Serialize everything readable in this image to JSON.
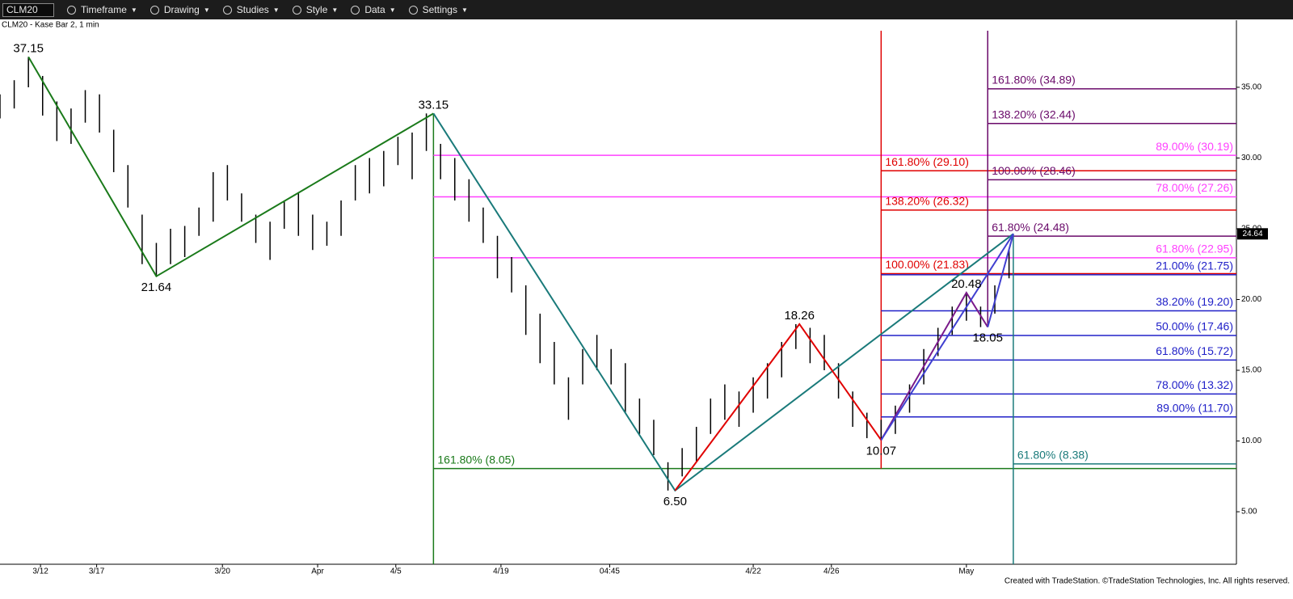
{
  "toolbar": {
    "symbol": "CLM20",
    "menus": [
      "Timeframe",
      "Drawing",
      "Studies",
      "Style",
      "Data",
      "Settings"
    ]
  },
  "footer": "Created with TradeStation. ©TradeStation Technologies, Inc. All rights reserved.",
  "chart_data": {
    "type": "ohlc",
    "title": "CLM20 - Kase Bar 2, 1 min",
    "xlim": [
      0,
      174
    ],
    "ylim": [
      1.29,
      39.74
    ],
    "yticks": [
      {
        "value": 5,
        "label": "5.00"
      },
      {
        "value": 10,
        "label": "10.00"
      },
      {
        "value": 15,
        "label": "15.00"
      },
      {
        "value": 20,
        "label": "20.00"
      },
      {
        "value": 25,
        "label": "25.00"
      },
      {
        "value": 30,
        "label": "30.00"
      },
      {
        "value": 35,
        "label": "35.00"
      }
    ],
    "xticks": [
      {
        "value": 5.7,
        "label": "3/12"
      },
      {
        "value": 13.6,
        "label": "3/17"
      },
      {
        "value": 31.3,
        "label": "3/20"
      },
      {
        "value": 44.7,
        "label": "Apr"
      },
      {
        "value": 55.7,
        "label": "4/5"
      },
      {
        "value": 70.5,
        "label": "4/19"
      },
      {
        "value": 85.8,
        "label": "04:45"
      },
      {
        "value": 106,
        "label": "4/22"
      },
      {
        "value": 117,
        "label": "4/26"
      },
      {
        "value": 136,
        "label": "May"
      }
    ],
    "bars": {
      "color": "#000000",
      "x": [
        0,
        2,
        4,
        6,
        8,
        10,
        12,
        14,
        16,
        18,
        20,
        22,
        24,
        26,
        28,
        30,
        32,
        34,
        36,
        38,
        40,
        42,
        44,
        46,
        48,
        50,
        52,
        54,
        56,
        58,
        60,
        62,
        64,
        66,
        68,
        70,
        72,
        74,
        76,
        78,
        80,
        82,
        84,
        86,
        88,
        90,
        92,
        94,
        96,
        98,
        100,
        102,
        104,
        106,
        108,
        110,
        112,
        114,
        116,
        118,
        120,
        122,
        124,
        126,
        128,
        130,
        132,
        134,
        136,
        138,
        140,
        142
      ],
      "high": [
        34.5,
        35.5,
        37.15,
        35.8,
        34.0,
        33.5,
        34.8,
        34.5,
        32.0,
        29.5,
        26.0,
        24.0,
        25.0,
        25.2,
        26.5,
        29.0,
        29.5,
        27.5,
        26.0,
        25.5,
        27.0,
        27.5,
        26.0,
        25.5,
        27.0,
        29.5,
        30.0,
        30.5,
        31.5,
        31.8,
        33.15,
        31.0,
        30.0,
        28.5,
        26.5,
        24.5,
        23.0,
        21.0,
        19.0,
        17.0,
        14.5,
        16.5,
        17.5,
        16.5,
        15.5,
        13.0,
        11.5,
        8.5,
        9.5,
        11.0,
        13.0,
        14.0,
        13.5,
        14.5,
        15.5,
        17.0,
        18.26,
        18.0,
        17.5,
        15.5,
        13.5,
        12.0,
        11.5,
        12.5,
        14.0,
        16.5,
        18.0,
        19.5,
        20.48,
        19.5,
        21.0,
        23.5
      ],
      "low": [
        32.8,
        33.5,
        35.0,
        33.0,
        31.2,
        31.0,
        32.5,
        31.8,
        29.0,
        26.5,
        22.5,
        21.64,
        22.5,
        23.0,
        24.5,
        25.5,
        27.0,
        25.5,
        24.0,
        22.8,
        25.0,
        24.5,
        23.5,
        23.8,
        24.5,
        27.0,
        27.5,
        28.0,
        29.5,
        28.5,
        30.5,
        28.5,
        27.0,
        25.5,
        24.0,
        21.5,
        20.5,
        17.5,
        15.5,
        14.0,
        11.5,
        14.0,
        15.0,
        14.0,
        12.0,
        10.5,
        9.0,
        6.5,
        7.5,
        8.5,
        10.5,
        11.5,
        11.0,
        12.0,
        13.0,
        14.5,
        16.5,
        15.5,
        15.0,
        13.0,
        11.0,
        10.2,
        10.07,
        10.5,
        12.0,
        14.0,
        16.0,
        17.5,
        18.5,
        18.05,
        19.0,
        21.5
      ]
    },
    "zigzags": [
      {
        "color": "#1a7a1a",
        "x": [
          4,
          22,
          61
        ],
        "values": [
          37.15,
          21.64,
          33.15
        ]
      },
      {
        "color": "#1a7a7a",
        "x": [
          61,
          95,
          142.6
        ],
        "values": [
          33.15,
          6.5,
          24.64
        ]
      },
      {
        "color": "#e00000",
        "x": [
          95,
          112.5,
          124
        ],
        "values": [
          6.5,
          18.26,
          10.07
        ]
      },
      {
        "color": "#7a1a8a",
        "x": [
          124,
          136,
          139
        ],
        "values": [
          10.07,
          20.48,
          18.05
        ]
      },
      {
        "color": "#4040d0",
        "x": [
          124,
          142.6
        ],
        "values": [
          10.07,
          24.64
        ]
      },
      {
        "color": "#4040d0",
        "x": [
          139,
          142.6
        ],
        "values": [
          18.05,
          24.64
        ]
      }
    ],
    "pivots": {
      "x": [
        4,
        22,
        61,
        95,
        112.5,
        124,
        136,
        139
      ],
      "values": [
        37.15,
        21.64,
        33.15,
        6.5,
        18.26,
        10.07,
        20.48,
        18.05
      ],
      "value_labels": [
        "37.15",
        "21.64",
        "33.15",
        "6.50",
        "18.26",
        "10.07",
        "20.48",
        "18.05"
      ]
    },
    "fib_groups": [
      {
        "color": "#1a7a1a",
        "x": 61,
        "vspan": [
          null,
          33.15
        ],
        "label_side": "left",
        "levels": [
          {
            "value": 8.05,
            "label": "161.80% (8.05)"
          }
        ]
      },
      {
        "color": "#ff40ff",
        "x": 61,
        "label_side": "right",
        "levels": [
          {
            "value": 30.19,
            "label": "89.00% (30.19)"
          },
          {
            "value": 27.26,
            "label": "78.00% (27.26)"
          },
          {
            "value": 22.95,
            "label": "61.80% (22.95)"
          }
        ]
      },
      {
        "color": "#e00000",
        "x": 124,
        "vspan": [
          8.05,
          null
        ],
        "label_side": "left",
        "levels": [
          {
            "value": 29.1,
            "label": "161.80% (29.10)"
          },
          {
            "value": 26.32,
            "label": "138.20% (26.32)"
          },
          {
            "value": 21.83,
            "label": "100.00% (21.83)"
          }
        ]
      },
      {
        "color": "#6a0a6a",
        "x": 139,
        "vspan": [
          18.05,
          null
        ],
        "label_side": "left",
        "levels": [
          {
            "value": 34.89,
            "label": "161.80% (34.89)"
          },
          {
            "value": 32.44,
            "label": "138.20% (32.44)"
          },
          {
            "value": 28.46,
            "label": "100.00% (28.46)"
          },
          {
            "value": 24.48,
            "label": "61.80% (24.48)"
          }
        ]
      },
      {
        "color": "#2020c8",
        "x": 124,
        "label_side": "right",
        "levels": [
          {
            "value": 21.75,
            "label": "21.00% (21.75)"
          },
          {
            "value": 19.2,
            "label": "38.20% (19.20)"
          },
          {
            "value": 17.46,
            "label": "50.00% (17.46)"
          },
          {
            "value": 15.72,
            "label": "61.80% (15.72)"
          },
          {
            "value": 13.32,
            "label": "78.00% (13.32)"
          },
          {
            "value": 11.7,
            "label": "89.00% (11.70)"
          }
        ]
      },
      {
        "color": "#1a7a7a",
        "x": 142.6,
        "vspan": [
          null,
          24.64
        ],
        "label_side": "left",
        "levels": [
          {
            "value": 8.38,
            "label": "61.80% (8.38)"
          }
        ]
      }
    ],
    "last_price": {
      "value": 24.64,
      "label": "24.64"
    }
  }
}
